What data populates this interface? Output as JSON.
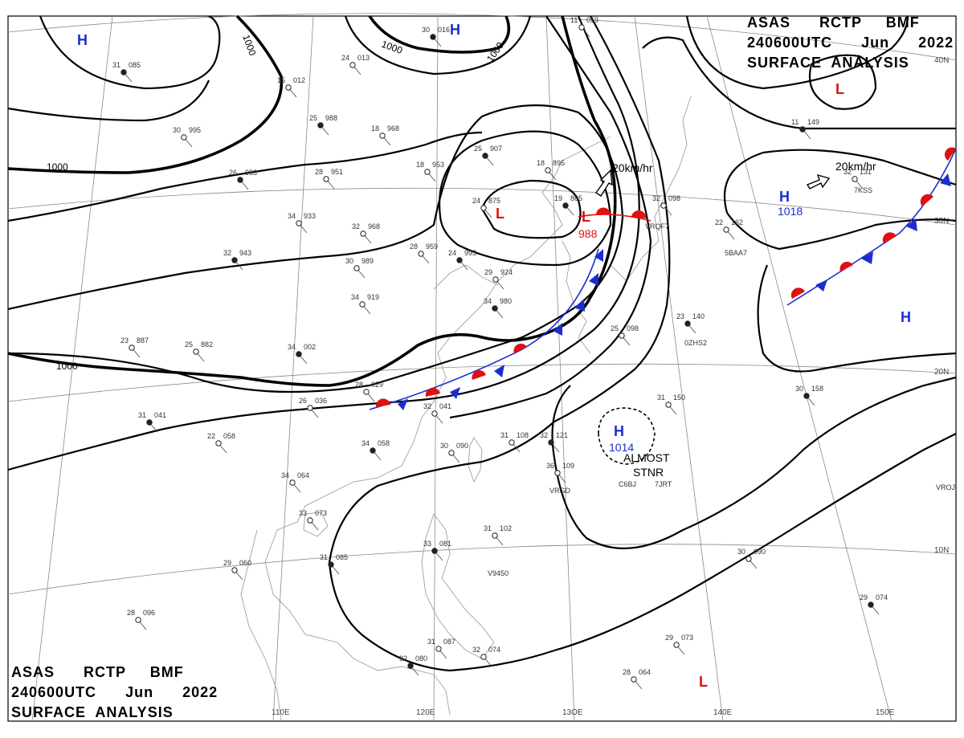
{
  "titles": {
    "top": {
      "line1": "ASAS      RCTP     BMF",
      "line2": "240600UTC      Jun      2022",
      "line3": "SURFACE  ANALYSIS"
    },
    "bottom": {
      "line1": "ASAS      RCTP     BMF",
      "line2": "240600UTC      Jun      2022",
      "line3": "SURFACE  ANALYSIS"
    }
  },
  "colors": {
    "high": "#1a2ecf",
    "low": "#e01010",
    "cold_front": "#1a2ecf",
    "warm_front": "#e01010"
  },
  "grid_labels": {
    "lon": [
      "110E",
      "120E",
      "13OE",
      "140E",
      "150E"
    ],
    "lat": [
      "40N",
      "30N",
      "20N",
      "10N"
    ]
  },
  "isobar_labels": [
    "1000",
    "1000",
    "1000",
    "1000",
    "1000"
  ],
  "pressure_centers": [
    {
      "letter": "H",
      "value": ""
    },
    {
      "letter": "H",
      "value": ""
    },
    {
      "letter": "L",
      "value": ""
    },
    {
      "letter": "L",
      "value": "988"
    },
    {
      "letter": "H",
      "value": "1018"
    },
    {
      "letter": "H",
      "value": ""
    },
    {
      "letter": "H",
      "value": "1014"
    },
    {
      "letter": "L",
      "value": ""
    },
    {
      "letter": "L",
      "value": ""
    }
  ],
  "motion_vectors": [
    {
      "label": "20km/hr"
    },
    {
      "label": "20km/hr"
    }
  ],
  "annotations": {
    "stationary_line1": "ALMOST",
    "stationary_line2": "STNR"
  },
  "ship_reports": [
    "VRQF7",
    "5BAA7",
    "0ZHS2",
    "C6BJ",
    "7JRT",
    "VRGD",
    "V9450",
    "7KSS",
    "VROJ"
  ],
  "station_obs": [
    {
      "temp": "30",
      "pres": "016"
    },
    {
      "temp": "24",
      "pres": "013"
    },
    {
      "temp": "15",
      "pres": "012"
    },
    {
      "temp": "25",
      "pres": "988"
    },
    {
      "temp": "18",
      "pres": "968"
    },
    {
      "temp": "30",
      "pres": "995"
    },
    {
      "temp": "26",
      "pres": "953"
    },
    {
      "temp": "28",
      "pres": "951"
    },
    {
      "temp": "18",
      "pres": "953"
    },
    {
      "temp": "25",
      "pres": "907"
    },
    {
      "temp": "18",
      "pres": "895"
    },
    {
      "temp": "24",
      "pres": "875"
    },
    {
      "temp": "19",
      "pres": "865"
    },
    {
      "temp": "34",
      "pres": "933"
    },
    {
      "temp": "32",
      "pres": "968"
    },
    {
      "temp": "32",
      "pres": "943"
    },
    {
      "temp": "30",
      "pres": "989"
    },
    {
      "temp": "28",
      "pres": "959"
    },
    {
      "temp": "24",
      "pres": "993"
    },
    {
      "temp": "29",
      "pres": "924"
    },
    {
      "temp": "34",
      "pres": "919"
    },
    {
      "temp": "34",
      "pres": "980"
    },
    {
      "temp": "23",
      "pres": "887"
    },
    {
      "temp": "25",
      "pres": "882"
    },
    {
      "temp": "34",
      "pres": "002"
    },
    {
      "temp": "28",
      "pres": "029"
    },
    {
      "temp": "26",
      "pres": "036"
    },
    {
      "temp": "34",
      "pres": "058"
    },
    {
      "temp": "30",
      "pres": "090"
    },
    {
      "temp": "31",
      "pres": "108"
    },
    {
      "temp": "32",
      "pres": "121"
    },
    {
      "temp": "36",
      "pres": "109"
    },
    {
      "temp": "31",
      "pres": "150"
    },
    {
      "temp": "23",
      "pres": "140"
    },
    {
      "temp": "25",
      "pres": "098"
    },
    {
      "temp": "22",
      "pres": "162"
    },
    {
      "temp": "30",
      "pres": "158"
    },
    {
      "temp": "34",
      "pres": "064"
    },
    {
      "temp": "33",
      "pres": "073"
    },
    {
      "temp": "31",
      "pres": "085"
    },
    {
      "temp": "29",
      "pres": "060"
    },
    {
      "temp": "28",
      "pres": "096"
    },
    {
      "temp": "33",
      "pres": "081"
    },
    {
      "temp": "31",
      "pres": "102"
    },
    {
      "temp": "30",
      "pres": "090"
    },
    {
      "temp": "29",
      "pres": "074"
    },
    {
      "temp": "29",
      "pres": "073"
    },
    {
      "temp": "28",
      "pres": "064"
    },
    {
      "temp": "32",
      "pres": "080"
    },
    {
      "temp": "31",
      "pres": "087"
    },
    {
      "temp": "32",
      "pres": "074"
    },
    {
      "temp": "11",
      "pres": "149"
    },
    {
      "temp": "32",
      "pres": "131"
    },
    {
      "temp": "11",
      "pres": "059"
    },
    {
      "temp": "31",
      "pres": "085"
    },
    {
      "temp": "32",
      "pres": "098"
    },
    {
      "temp": "32",
      "pres": "041"
    },
    {
      "temp": "31",
      "pres": "041"
    },
    {
      "temp": "22",
      "pres": "058"
    }
  ]
}
